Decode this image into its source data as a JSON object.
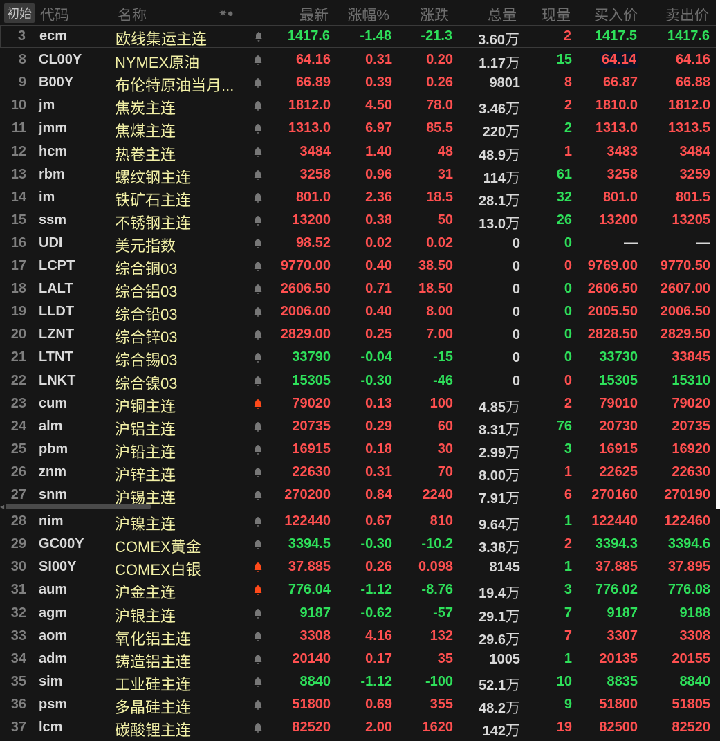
{
  "header": {
    "init_button": "初始",
    "code": "代码",
    "name": "名称",
    "icons": "✷●",
    "last": "最新",
    "pct": "涨幅%",
    "chg": "涨跌",
    "vol": "总量",
    "now": "现量",
    "bid": "买入价",
    "ask": "卖出价"
  },
  "colors": {
    "up": "#ff5050",
    "down": "#2ee05a",
    "name": "#f2f0a6",
    "bell_active": "#ff4a1a",
    "bell": "#777777"
  },
  "rows": [
    {
      "no": "3",
      "code": "ecm",
      "name": "欧线集运主连",
      "last": "1417.6",
      "pct": "-1.48",
      "chg": "-21.3",
      "vol": "3.60",
      "unit": "万",
      "now": "2",
      "now_dir": "up",
      "bid": "1417.5",
      "bid_dir": "down",
      "ask": "1417.6",
      "ask_dir": "down",
      "dir": "down",
      "bell": false,
      "selected": true
    },
    {
      "no": "8",
      "code": "CL00Y",
      "name": "NYMEX原油",
      "last": "64.16",
      "pct": "0.31",
      "chg": "0.20",
      "vol": "1.17",
      "unit": "万",
      "now": "15",
      "now_dir": "down",
      "bid": "64.14",
      "bid_dir": "up",
      "ask": "64.16",
      "ask_dir": "up",
      "dir": "up",
      "bell": false,
      "bid_highlight": true
    },
    {
      "no": "9",
      "code": "B00Y",
      "name": "布伦特原油当月...",
      "last": "66.89",
      "pct": "0.39",
      "chg": "0.26",
      "vol": "9801",
      "unit": "",
      "now": "8",
      "now_dir": "up",
      "bid": "66.87",
      "bid_dir": "up",
      "ask": "66.88",
      "ask_dir": "up",
      "dir": "up",
      "bell": false
    },
    {
      "no": "10",
      "code": "jm",
      "name": "焦炭主连",
      "last": "1812.0",
      "pct": "4.50",
      "chg": "78.0",
      "vol": "3.46",
      "unit": "万",
      "now": "2",
      "now_dir": "up",
      "bid": "1810.0",
      "bid_dir": "up",
      "ask": "1812.0",
      "ask_dir": "up",
      "dir": "up",
      "bell": false
    },
    {
      "no": "11",
      "code": "jmm",
      "name": "焦煤主连",
      "last": "1313.0",
      "pct": "6.97",
      "chg": "85.5",
      "vol": "220",
      "unit": "万",
      "now": "2",
      "now_dir": "down",
      "bid": "1313.0",
      "bid_dir": "up",
      "ask": "1313.5",
      "ask_dir": "up",
      "dir": "up",
      "bell": false
    },
    {
      "no": "12",
      "code": "hcm",
      "name": "热卷主连",
      "last": "3484",
      "pct": "1.40",
      "chg": "48",
      "vol": "48.9",
      "unit": "万",
      "now": "1",
      "now_dir": "up",
      "bid": "3483",
      "bid_dir": "up",
      "ask": "3484",
      "ask_dir": "up",
      "dir": "up",
      "bell": false
    },
    {
      "no": "13",
      "code": "rbm",
      "name": "螺纹钢主连",
      "last": "3258",
      "pct": "0.96",
      "chg": "31",
      "vol": "114",
      "unit": "万",
      "now": "61",
      "now_dir": "down",
      "bid": "3258",
      "bid_dir": "up",
      "ask": "3259",
      "ask_dir": "up",
      "dir": "up",
      "bell": false
    },
    {
      "no": "14",
      "code": "im",
      "name": "铁矿石主连",
      "last": "801.0",
      "pct": "2.36",
      "chg": "18.5",
      "vol": "28.1",
      "unit": "万",
      "now": "32",
      "now_dir": "down",
      "bid": "801.0",
      "bid_dir": "up",
      "ask": "801.5",
      "ask_dir": "up",
      "dir": "up",
      "bell": false
    },
    {
      "no": "15",
      "code": "ssm",
      "name": "不锈钢主连",
      "last": "13200",
      "pct": "0.38",
      "chg": "50",
      "vol": "13.0",
      "unit": "万",
      "now": "26",
      "now_dir": "down",
      "bid": "13200",
      "bid_dir": "up",
      "ask": "13205",
      "ask_dir": "up",
      "dir": "up",
      "bell": false
    },
    {
      "no": "16",
      "code": "UDI",
      "name": "美元指数",
      "last": "98.52",
      "pct": "0.02",
      "chg": "0.02",
      "vol": "0",
      "unit": "",
      "now": "0",
      "now_dir": "down",
      "bid": "—",
      "bid_dir": "flat",
      "ask": "—",
      "ask_dir": "flat",
      "dir": "up",
      "bell": false
    },
    {
      "no": "17",
      "code": "LCPT",
      "name": "综合铜03",
      "last": "9770.00",
      "pct": "0.40",
      "chg": "38.50",
      "vol": "0",
      "unit": "",
      "now": "0",
      "now_dir": "up",
      "bid": "9769.00",
      "bid_dir": "up",
      "ask": "9770.50",
      "ask_dir": "up",
      "dir": "up",
      "bell": false
    },
    {
      "no": "18",
      "code": "LALT",
      "name": "综合铝03",
      "last": "2606.50",
      "pct": "0.71",
      "chg": "18.50",
      "vol": "0",
      "unit": "",
      "now": "0",
      "now_dir": "down",
      "bid": "2606.50",
      "bid_dir": "up",
      "ask": "2607.00",
      "ask_dir": "up",
      "dir": "up",
      "bell": false
    },
    {
      "no": "19",
      "code": "LLDT",
      "name": "综合铅03",
      "last": "2006.00",
      "pct": "0.40",
      "chg": "8.00",
      "vol": "0",
      "unit": "",
      "now": "0",
      "now_dir": "down",
      "bid": "2005.50",
      "bid_dir": "up",
      "ask": "2006.50",
      "ask_dir": "up",
      "dir": "up",
      "bell": false
    },
    {
      "no": "20",
      "code": "LZNT",
      "name": "综合锌03",
      "last": "2829.00",
      "pct": "0.25",
      "chg": "7.00",
      "vol": "0",
      "unit": "",
      "now": "0",
      "now_dir": "down",
      "bid": "2828.50",
      "bid_dir": "up",
      "ask": "2829.50",
      "ask_dir": "up",
      "dir": "up",
      "bell": false
    },
    {
      "no": "21",
      "code": "LTNT",
      "name": "综合锡03",
      "last": "33790",
      "pct": "-0.04",
      "chg": "-15",
      "vol": "0",
      "unit": "",
      "now": "0",
      "now_dir": "down",
      "bid": "33730",
      "bid_dir": "down",
      "ask": "33845",
      "ask_dir": "up",
      "dir": "down",
      "bell": false
    },
    {
      "no": "22",
      "code": "LNKT",
      "name": "综合镍03",
      "last": "15305",
      "pct": "-0.30",
      "chg": "-46",
      "vol": "0",
      "unit": "",
      "now": "0",
      "now_dir": "up",
      "bid": "15305",
      "bid_dir": "down",
      "ask": "15310",
      "ask_dir": "down",
      "dir": "down",
      "bell": false
    },
    {
      "no": "23",
      "code": "cum",
      "name": "沪铜主连",
      "last": "79020",
      "pct": "0.13",
      "chg": "100",
      "vol": "4.85",
      "unit": "万",
      "now": "2",
      "now_dir": "up",
      "bid": "79010",
      "bid_dir": "up",
      "ask": "79020",
      "ask_dir": "up",
      "dir": "up",
      "bell": true
    },
    {
      "no": "24",
      "code": "alm",
      "name": "沪铝主连",
      "last": "20735",
      "pct": "0.29",
      "chg": "60",
      "vol": "8.31",
      "unit": "万",
      "now": "76",
      "now_dir": "down",
      "bid": "20730",
      "bid_dir": "up",
      "ask": "20735",
      "ask_dir": "up",
      "dir": "up",
      "bell": false
    },
    {
      "no": "25",
      "code": "pbm",
      "name": "沪铅主连",
      "last": "16915",
      "pct": "0.18",
      "chg": "30",
      "vol": "2.99",
      "unit": "万",
      "now": "3",
      "now_dir": "down",
      "bid": "16915",
      "bid_dir": "up",
      "ask": "16920",
      "ask_dir": "up",
      "dir": "up",
      "bell": false
    },
    {
      "no": "26",
      "code": "znm",
      "name": "沪锌主连",
      "last": "22630",
      "pct": "0.31",
      "chg": "70",
      "vol": "8.00",
      "unit": "万",
      "now": "1",
      "now_dir": "up",
      "bid": "22625",
      "bid_dir": "up",
      "ask": "22630",
      "ask_dir": "up",
      "dir": "up",
      "bell": false
    },
    {
      "no": "27",
      "code": "snm",
      "name": "沪锡主连",
      "last": "270200",
      "pct": "0.84",
      "chg": "2240",
      "vol": "7.91",
      "unit": "万",
      "now": "6",
      "now_dir": "up",
      "bid": "270160",
      "bid_dir": "up",
      "ask": "270190",
      "ask_dir": "up",
      "dir": "up",
      "bell": false
    },
    {
      "no": "28",
      "code": "nim",
      "name": "沪镍主连",
      "last": "122440",
      "pct": "0.67",
      "chg": "810",
      "vol": "9.64",
      "unit": "万",
      "now": "1",
      "now_dir": "down",
      "bid": "122440",
      "bid_dir": "up",
      "ask": "122460",
      "ask_dir": "up",
      "dir": "up",
      "bell": false
    },
    {
      "no": "29",
      "code": "GC00Y",
      "name": "COMEX黄金",
      "last": "3394.5",
      "pct": "-0.30",
      "chg": "-10.2",
      "vol": "3.38",
      "unit": "万",
      "now": "2",
      "now_dir": "up",
      "bid": "3394.3",
      "bid_dir": "down",
      "ask": "3394.6",
      "ask_dir": "down",
      "dir": "down",
      "bell": false
    },
    {
      "no": "30",
      "code": "SI00Y",
      "name": "COMEX白银",
      "last": "37.885",
      "pct": "0.26",
      "chg": "0.098",
      "vol": "8145",
      "unit": "",
      "now": "1",
      "now_dir": "down",
      "bid": "37.885",
      "bid_dir": "up",
      "ask": "37.895",
      "ask_dir": "up",
      "dir": "up",
      "bell": true
    },
    {
      "no": "31",
      "code": "aum",
      "name": "沪金主连",
      "last": "776.04",
      "pct": "-1.12",
      "chg": "-8.76",
      "vol": "19.4",
      "unit": "万",
      "now": "3",
      "now_dir": "down",
      "bid": "776.02",
      "bid_dir": "down",
      "ask": "776.08",
      "ask_dir": "down",
      "dir": "down",
      "bell": true
    },
    {
      "no": "32",
      "code": "agm",
      "name": "沪银主连",
      "last": "9187",
      "pct": "-0.62",
      "chg": "-57",
      "vol": "29.1",
      "unit": "万",
      "now": "7",
      "now_dir": "down",
      "bid": "9187",
      "bid_dir": "down",
      "ask": "9188",
      "ask_dir": "down",
      "dir": "down",
      "bell": false
    },
    {
      "no": "33",
      "code": "aom",
      "name": "氧化铝主连",
      "last": "3308",
      "pct": "4.16",
      "chg": "132",
      "vol": "29.6",
      "unit": "万",
      "now": "7",
      "now_dir": "up",
      "bid": "3307",
      "bid_dir": "up",
      "ask": "3308",
      "ask_dir": "up",
      "dir": "up",
      "bell": false
    },
    {
      "no": "34",
      "code": "adm",
      "name": "铸造铝主连",
      "last": "20140",
      "pct": "0.17",
      "chg": "35",
      "vol": "1005",
      "unit": "",
      "now": "1",
      "now_dir": "down",
      "bid": "20135",
      "bid_dir": "up",
      "ask": "20155",
      "ask_dir": "up",
      "dir": "up",
      "bell": false
    },
    {
      "no": "35",
      "code": "sim",
      "name": "工业硅主连",
      "last": "8840",
      "pct": "-1.12",
      "chg": "-100",
      "vol": "52.1",
      "unit": "万",
      "now": "10",
      "now_dir": "down",
      "bid": "8835",
      "bid_dir": "down",
      "ask": "8840",
      "ask_dir": "down",
      "dir": "down",
      "bell": false
    },
    {
      "no": "36",
      "code": "psm",
      "name": "多晶硅主连",
      "last": "51800",
      "pct": "0.69",
      "chg": "355",
      "vol": "48.2",
      "unit": "万",
      "now": "9",
      "now_dir": "down",
      "bid": "51800",
      "bid_dir": "up",
      "ask": "51805",
      "ask_dir": "up",
      "dir": "up",
      "bell": false
    },
    {
      "no": "37",
      "code": "lcm",
      "name": "碳酸锂主连",
      "last": "82520",
      "pct": "2.00",
      "chg": "1620",
      "vol": "142",
      "unit": "万",
      "now": "19",
      "now_dir": "up",
      "bid": "82500",
      "bid_dir": "up",
      "ask": "82520",
      "ask_dir": "up",
      "dir": "up",
      "bell": false
    }
  ]
}
